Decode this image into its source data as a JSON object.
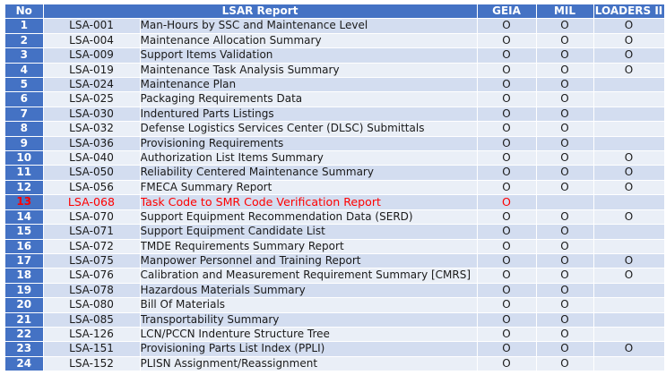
{
  "headers": {
    "no": "No",
    "report": "LSAR Report",
    "geia": "GEIA",
    "mil": "MIL",
    "loaders": "LOADERS II"
  },
  "colors": {
    "header_bg": "#4472c4",
    "row_odd": "#d3ddf0",
    "row_even": "#eaeff7",
    "highlight_text": "#ff0000"
  },
  "rows": [
    {
      "no": "1",
      "code": "LSA-001",
      "title": "Man-Hours by SSC and Maintenance Level",
      "geia": "O",
      "mil": "O",
      "loaders": "O"
    },
    {
      "no": "2",
      "code": "LSA-004",
      "title": "Maintenance Allocation Summary",
      "geia": "O",
      "mil": "O",
      "loaders": "O"
    },
    {
      "no": "3",
      "code": "LSA-009",
      "title": "Support Items Validation",
      "geia": "O",
      "mil": "O",
      "loaders": "O"
    },
    {
      "no": "4",
      "code": "LSA-019",
      "title": "Maintenance Task Analysis Summary",
      "geia": "O",
      "mil": "O",
      "loaders": "O"
    },
    {
      "no": "5",
      "code": "LSA-024",
      "title": "Maintenance Plan",
      "geia": "O",
      "mil": "O",
      "loaders": ""
    },
    {
      "no": "6",
      "code": "LSA-025",
      "title": "Packaging Requirements Data",
      "geia": "O",
      "mil": "O",
      "loaders": ""
    },
    {
      "no": "7",
      "code": "LSA-030",
      "title": "Indentured Parts Listings",
      "geia": "O",
      "mil": "O",
      "loaders": ""
    },
    {
      "no": "8",
      "code": "LSA-032",
      "title": "Defense Logistics Services Center (DLSC) Submittals",
      "geia": "O",
      "mil": "O",
      "loaders": ""
    },
    {
      "no": "9",
      "code": "LSA-036",
      "title": "Provisioning Requirements",
      "geia": "O",
      "mil": "O",
      "loaders": ""
    },
    {
      "no": "10",
      "code": "LSA-040",
      "title": "Authorization List Items Summary",
      "geia": "O",
      "mil": "O",
      "loaders": "O"
    },
    {
      "no": "11",
      "code": "LSA-050",
      "title": "Reliability Centered Maintenance Summary",
      "geia": "O",
      "mil": "O",
      "loaders": "O"
    },
    {
      "no": "12",
      "code": "LSA-056",
      "title": "FMECA Summary Report",
      "geia": "O",
      "mil": "O",
      "loaders": "O"
    },
    {
      "no": "13",
      "code": "LSA-068",
      "title": "Task Code to SMR Code Verification Report",
      "geia": "O",
      "mil": "",
      "loaders": "",
      "highlight": true
    },
    {
      "no": "14",
      "code": "LSA-070",
      "title": "Support Equipment Recommendation Data (SERD)",
      "geia": "O",
      "mil": "O",
      "loaders": "O"
    },
    {
      "no": "15",
      "code": "LSA-071",
      "title": "Support Equipment Candidate List",
      "geia": "O",
      "mil": "O",
      "loaders": ""
    },
    {
      "no": "16",
      "code": "LSA-072",
      "title": "TMDE Requirements Summary Report",
      "geia": "O",
      "mil": "O",
      "loaders": ""
    },
    {
      "no": "17",
      "code": "LSA-075",
      "title": "Manpower Personnel and Training Report",
      "geia": "O",
      "mil": "O",
      "loaders": "O"
    },
    {
      "no": "18",
      "code": "LSA-076",
      "title": "Calibration and Measurement Requirement Summary [CMRS]",
      "geia": "O",
      "mil": "O",
      "loaders": "O"
    },
    {
      "no": "19",
      "code": "LSA-078",
      "title": "Hazardous Materials Summary",
      "geia": "O",
      "mil": "O",
      "loaders": ""
    },
    {
      "no": "20",
      "code": "LSA-080",
      "title": "Bill Of Materials",
      "geia": "O",
      "mil": "O",
      "loaders": ""
    },
    {
      "no": "21",
      "code": "LSA-085",
      "title": "Transportability Summary",
      "geia": "O",
      "mil": "O",
      "loaders": ""
    },
    {
      "no": "22",
      "code": "LSA-126",
      "title": "LCN/PCCN Indenture Structure Tree",
      "geia": "O",
      "mil": "O",
      "loaders": ""
    },
    {
      "no": "23",
      "code": "LSA-151",
      "title": "Provisioning Parts List Index (PPLI)",
      "geia": "O",
      "mil": "O",
      "loaders": "O"
    },
    {
      "no": "24",
      "code": "LSA-152",
      "title": "PLISN Assignment/Reassignment",
      "geia": "O",
      "mil": "O",
      "loaders": ""
    }
  ]
}
